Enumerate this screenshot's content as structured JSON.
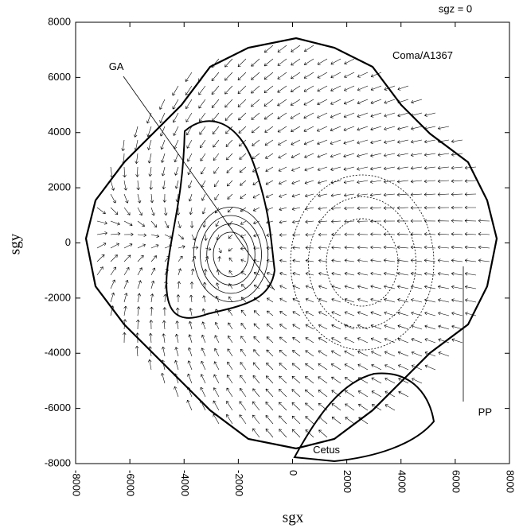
{
  "chart_data": {
    "type": "vector_field",
    "subtitle": "sgz = 0",
    "xlabel": "sgx",
    "ylabel": "sgy",
    "xlim": [
      -8000,
      8000
    ],
    "ylim": [
      -8000,
      8000
    ],
    "xticks": [
      -8000,
      -6000,
      -4000,
      -2000,
      0,
      2000,
      4000,
      6000,
      8000
    ],
    "yticks": [
      -8000,
      -6000,
      -4000,
      -2000,
      0,
      2000,
      4000,
      6000,
      8000
    ],
    "annotations": [
      {
        "text": "Coma/A1367",
        "x": 4800,
        "y": 6780
      },
      {
        "text": "GA",
        "x": -6500,
        "y": 6370
      },
      {
        "text": "PP",
        "x": 7100,
        "y": -6150
      },
      {
        "text": "Cetus",
        "x": 1250,
        "y": -7520
      }
    ]
  }
}
